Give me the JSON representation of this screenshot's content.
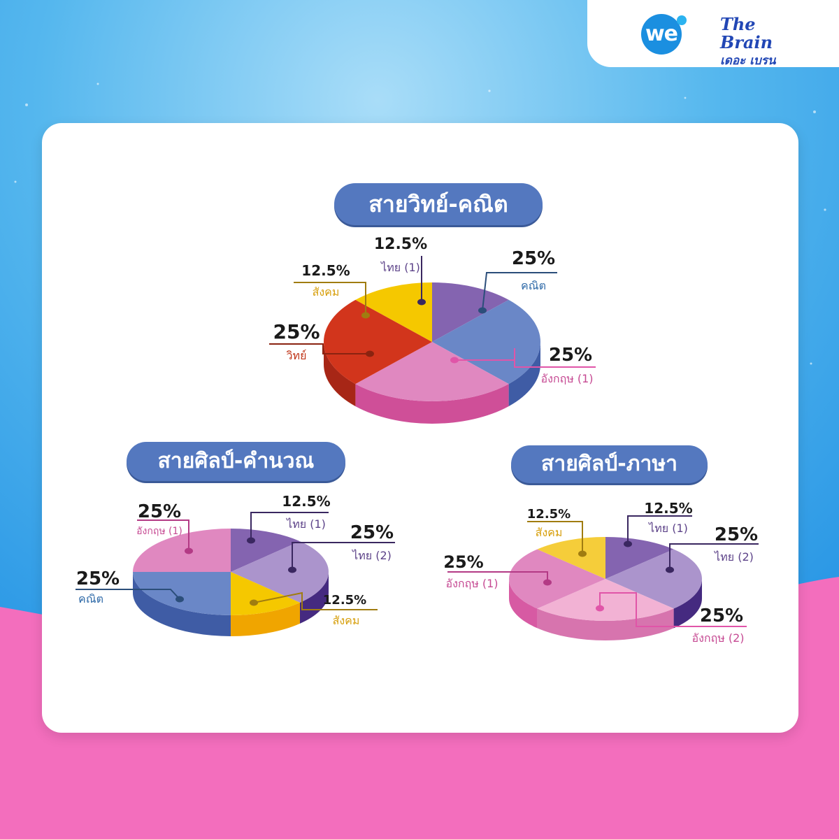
{
  "brand": {
    "logo_we": "we",
    "logo_brain": "The Brain",
    "logo_brain_thai": "เดอะ เบรน"
  },
  "colors": {
    "background_sky": "#4fb4ec",
    "background_pink": "#f36ebd",
    "pill": "#5478bf"
  },
  "chart_data": [
    {
      "type": "pie",
      "title": "สายวิทย์-คณิต",
      "slices": [
        {
          "label": "ไทย (1)",
          "value": 12.5,
          "value_text": "12.5%",
          "color": "#8464b0",
          "side": "#5d4389",
          "label_color": "#5d4389",
          "dot": "#3a2760"
        },
        {
          "label": "คณิต",
          "value": 25,
          "value_text": "25%",
          "color": "#6a87c7",
          "side": "#3f5ca5",
          "label_color": "#2f6aa8",
          "dot": "#2b4e7a"
        },
        {
          "label": "อังกฤษ (1)",
          "value": 25,
          "value_text": "25%",
          "color": "#e088c0",
          "side": "#cf4f98",
          "label_color": "#c64a93",
          "dot": "#e055a8"
        },
        {
          "label": "วิทย์",
          "value": 25,
          "value_text": "25%",
          "color": "#d2351c",
          "side": "#a72616",
          "label_color": "#c0361a",
          "dot": "#8a2310"
        },
        {
          "label": "สังคม",
          "value": 12.5,
          "value_text": "12.5%",
          "color": "#f5c800",
          "side": "#d39e00",
          "label_color": "#d79f0c",
          "dot": "#a07c10"
        }
      ]
    },
    {
      "type": "pie",
      "title": "สายศิลป์-คำนวณ",
      "slices": [
        {
          "label": "ไทย (1)",
          "value": 12.5,
          "value_text": "12.5%",
          "color": "#8464b0",
          "side": "#5d4389",
          "label_color": "#5d4389",
          "dot": "#3a2760"
        },
        {
          "label": "ไทย (2)",
          "value": 25,
          "value_text": "25%",
          "color": "#ab94cc",
          "side": "#452a80",
          "label_color": "#5d4389",
          "dot": "#3a2760"
        },
        {
          "label": "สังคม",
          "value": 12.5,
          "value_text": "12.5%",
          "color": "#f5c800",
          "side": "#f0a500",
          "label_color": "#d79f0c",
          "dot": "#a07c10"
        },
        {
          "label": "คณิต",
          "value": 25,
          "value_text": "25%",
          "color": "#6a87c7",
          "side": "#3f5ca5",
          "label_color": "#2f6aa8",
          "dot": "#2b4e7a"
        },
        {
          "label": "อังกฤษ (1)",
          "value": 25,
          "value_text": "25%",
          "color": "#e088c0",
          "side": "#cf4f98",
          "label_color": "#c64a93",
          "dot": "#b33a85"
        }
      ]
    },
    {
      "type": "pie",
      "title": "สายศิลป์-ภาษา",
      "slices": [
        {
          "label": "ไทย (1)",
          "value": 12.5,
          "value_text": "12.5%",
          "color": "#8464b0",
          "side": "#5d4389",
          "label_color": "#5d4389",
          "dot": "#3a2760"
        },
        {
          "label": "ไทย (2)",
          "value": 25,
          "value_text": "25%",
          "color": "#ab94cc",
          "side": "#452a80",
          "label_color": "#5d4389",
          "dot": "#3a2760"
        },
        {
          "label": "อังกฤษ (2)",
          "value": 25,
          "value_text": "25%",
          "color": "#f2b2d4",
          "side": "#d774ae",
          "label_color": "#c64a93",
          "dot": "#e055a8"
        },
        {
          "label": "อังกฤษ (1)",
          "value": 25,
          "value_text": "25%",
          "color": "#e088c0",
          "side": "#d75aa3",
          "label_color": "#c64a93",
          "dot": "#b33a85"
        },
        {
          "label": "สังคม",
          "value": 12.5,
          "value_text": "12.5%",
          "color": "#f5cd3a",
          "side": "#d39e00",
          "label_color": "#d79f0c",
          "dot": "#a07c10"
        }
      ]
    }
  ]
}
